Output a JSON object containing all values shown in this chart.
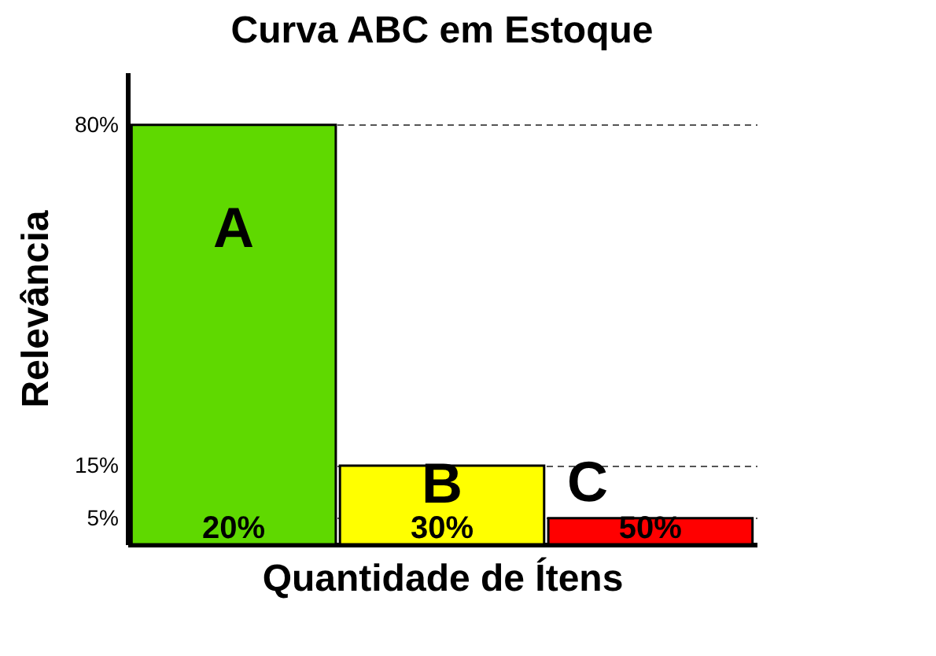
{
  "chart_data": {
    "type": "bar",
    "title": "Curva ABC em Estoque",
    "xlabel": "Quantidade de Ítens",
    "ylabel": "Relevância",
    "categories": [
      "A",
      "B",
      "C"
    ],
    "values": [
      80,
      15,
      5
    ],
    "colors": [
      "#5fd900",
      "#ffff00",
      "#ff0000"
    ],
    "ylim": [
      0,
      90
    ],
    "yticks": [
      {
        "value": 5,
        "label": "5%"
      },
      {
        "value": 15,
        "label": "15%"
      },
      {
        "value": 80,
        "label": "80%"
      }
    ],
    "grid": "y",
    "tick_labels": "y",
    "legend": false,
    "annotations": [
      "20%",
      "30%",
      "50%"
    ]
  }
}
